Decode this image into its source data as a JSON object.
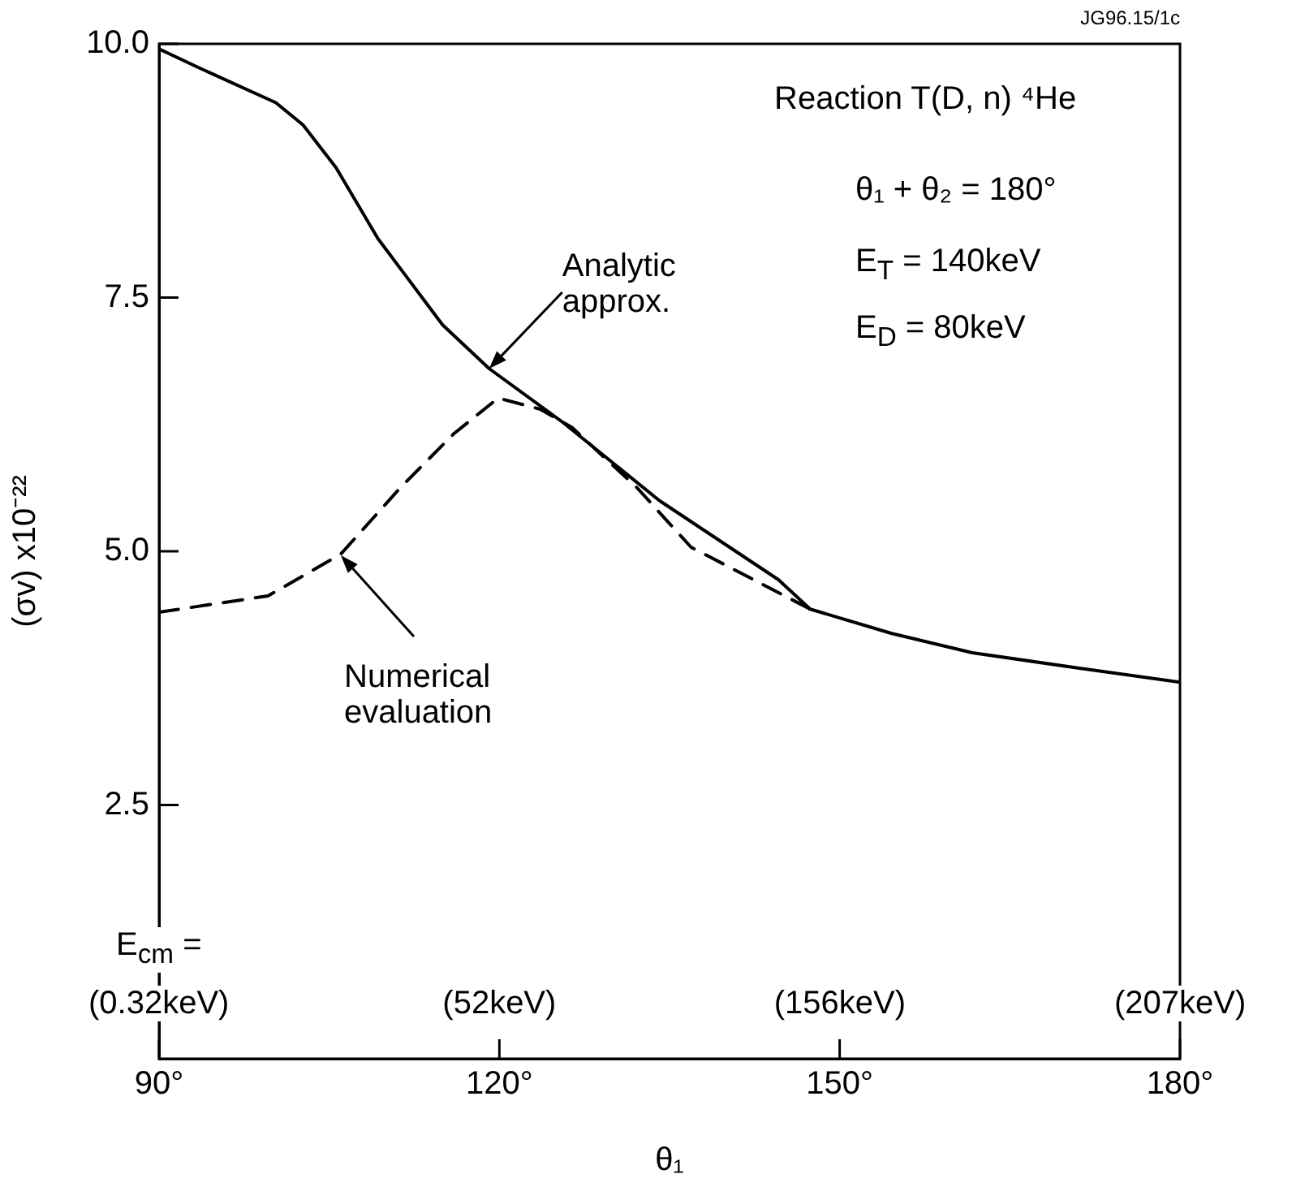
{
  "chart_data": {
    "type": "line",
    "xlabel": "θ₁",
    "ylabel": "(σv) x10⁻²²",
    "xlim": [
      90,
      180
    ],
    "xticks": [
      {
        "value": 90,
        "label": "90°"
      },
      {
        "value": 120,
        "label": "120°"
      },
      {
        "value": 150,
        "label": "150°"
      },
      {
        "value": 180,
        "label": "180°"
      }
    ],
    "ylim": [
      0,
      10
    ],
    "yticks": [
      2.5,
      {
        "value": 5,
        "label": "5.0"
      },
      7.5,
      {
        "value": 10,
        "label": "10.0"
      }
    ],
    "grid": false,
    "legend": false,
    "marker": "none",
    "series": [
      {
        "color": "#000000",
        "line_style": "solid",
        "x": [
          90,
          93.6,
          100.3,
          102.7,
          105.6,
          109.3,
          115,
          119.1,
          125.6,
          134.1,
          144.6,
          147.4,
          154.6,
          161.7,
          171,
          180
        ],
        "values": [
          9.95,
          9.76,
          9.42,
          9.2,
          8.78,
          8.08,
          7.23,
          6.8,
          6.27,
          5.5,
          4.72,
          4.43,
          4.19,
          4.0,
          3.85,
          3.71
        ]
      },
      {
        "color": "#000000",
        "line_style": "dashed",
        "x": [
          90,
          99.6,
          106,
          111.3,
          116,
          119.9,
          123.6,
          126.4,
          132.1,
          136.9,
          147.4
        ],
        "values": [
          4.4,
          4.56,
          4.97,
          5.63,
          6.16,
          6.51,
          6.4,
          6.22,
          5.63,
          5.04,
          4.43
        ]
      }
    ],
    "annotations": [
      "JG96.15/1c",
      "Reaction T(D, n) ⁴He",
      "θ₁ + θ₂ = 180°",
      "E$_{T}$ = 140keV",
      "E$_{D}$ = 80keV",
      {
        "text": "Analytic approx.",
        "x": 119.1,
        "y": 6.8
      },
      "Numerical evaluation",
      "E$_{cm}$ =",
      "(0.32keV)",
      "(52keV)",
      "(156keV)",
      "(207keV)"
    ]
  }
}
